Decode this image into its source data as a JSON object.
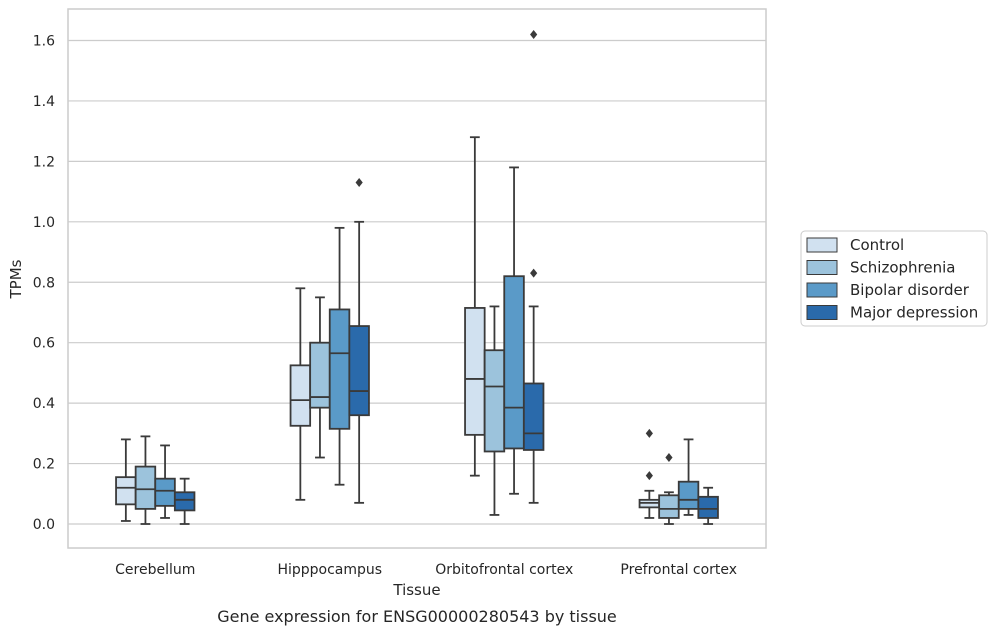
{
  "chart_data": {
    "type": "boxplot",
    "caption": "Gene expression for ENSG00000280543 by tissue",
    "xlabel": "Tissue",
    "ylabel": "TPMs",
    "ylim": [
      -0.08,
      1.7
    ],
    "yticks": [
      0.0,
      0.2,
      0.4,
      0.6,
      0.8,
      1.0,
      1.2,
      1.4,
      1.6
    ],
    "ytick_labels": [
      "0.0",
      "0.2",
      "0.4",
      "0.6",
      "0.8",
      "1.0",
      "1.2",
      "1.4",
      "1.6"
    ],
    "grid": true,
    "legend_position": "outside-right",
    "categories": [
      "Cerebellum",
      "Hipppocampus",
      "Orbitofrontal cortex",
      "Prefrontal cortex"
    ],
    "series": [
      {
        "name": "Control",
        "color": "#d1e1f0",
        "boxes": [
          {
            "whislo": 0.01,
            "q1": 0.065,
            "med": 0.12,
            "q3": 0.155,
            "whishi": 0.28,
            "fliers": []
          },
          {
            "whislo": 0.08,
            "q1": 0.325,
            "med": 0.41,
            "q3": 0.525,
            "whishi": 0.78,
            "fliers": []
          },
          {
            "whislo": 0.16,
            "q1": 0.295,
            "med": 0.48,
            "q3": 0.715,
            "whishi": 1.28,
            "fliers": []
          },
          {
            "whislo": 0.02,
            "q1": 0.055,
            "med": 0.07,
            "q3": 0.08,
            "whishi": 0.11,
            "fliers": [
              0.16,
              0.3
            ]
          }
        ]
      },
      {
        "name": "Schizophrenia",
        "color": "#9cc3dc",
        "boxes": [
          {
            "whislo": 0.0,
            "q1": 0.05,
            "med": 0.115,
            "q3": 0.19,
            "whishi": 0.29,
            "fliers": []
          },
          {
            "whislo": 0.22,
            "q1": 0.385,
            "med": 0.42,
            "q3": 0.6,
            "whishi": 0.75,
            "fliers": []
          },
          {
            "whislo": 0.03,
            "q1": 0.24,
            "med": 0.455,
            "q3": 0.575,
            "whishi": 0.72,
            "fliers": []
          },
          {
            "whislo": 0.0,
            "q1": 0.02,
            "med": 0.05,
            "q3": 0.095,
            "whishi": 0.105,
            "fliers": [
              0.22
            ]
          }
        ]
      },
      {
        "name": "Bipolar disorder",
        "color": "#5a9ac8",
        "boxes": [
          {
            "whislo": 0.02,
            "q1": 0.06,
            "med": 0.11,
            "q3": 0.15,
            "whishi": 0.26,
            "fliers": []
          },
          {
            "whislo": 0.13,
            "q1": 0.315,
            "med": 0.565,
            "q3": 0.71,
            "whishi": 0.98,
            "fliers": []
          },
          {
            "whislo": 0.1,
            "q1": 0.25,
            "med": 0.385,
            "q3": 0.82,
            "whishi": 1.18,
            "fliers": []
          },
          {
            "whislo": 0.03,
            "q1": 0.05,
            "med": 0.08,
            "q3": 0.14,
            "whishi": 0.28,
            "fliers": []
          }
        ]
      },
      {
        "name": "Major depression",
        "color": "#2a6aab",
        "boxes": [
          {
            "whislo": 0.0,
            "q1": 0.045,
            "med": 0.08,
            "q3": 0.105,
            "whishi": 0.15,
            "fliers": []
          },
          {
            "whislo": 0.07,
            "q1": 0.36,
            "med": 0.44,
            "q3": 0.655,
            "whishi": 1.0,
            "fliers": [
              1.13
            ]
          },
          {
            "whislo": 0.07,
            "q1": 0.245,
            "med": 0.3,
            "q3": 0.465,
            "whishi": 0.72,
            "fliers": [
              0.83,
              1.62
            ]
          },
          {
            "whislo": 0.0,
            "q1": 0.02,
            "med": 0.05,
            "q3": 0.09,
            "whishi": 0.12,
            "fliers": []
          }
        ]
      }
    ],
    "colors": {
      "axis_frame": "#cccccc",
      "grid": "#cccccc",
      "box_edge": "#3a3a3a",
      "legend_frame": "#cccccc"
    }
  }
}
